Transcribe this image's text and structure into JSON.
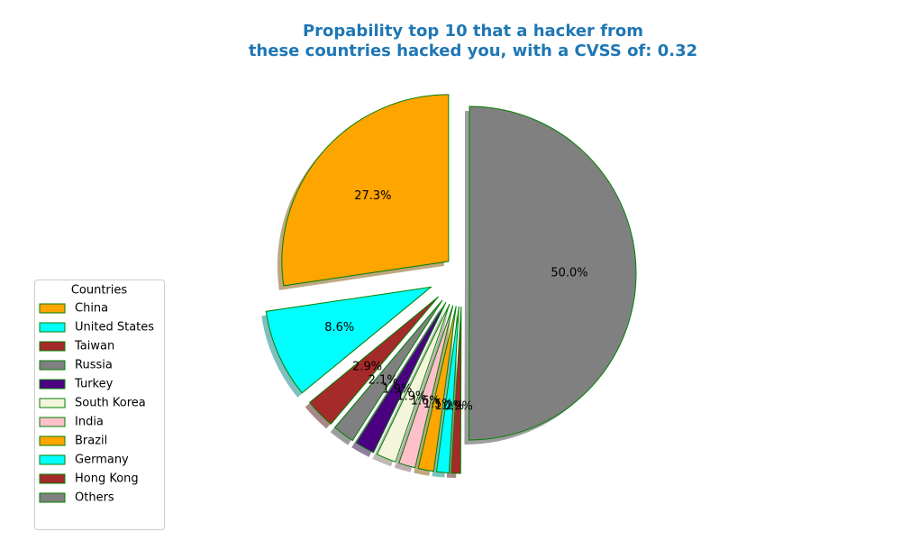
{
  "chart_data": {
    "type": "pie",
    "title": "Propability top 10 that a hacker from\nthese countries hacked you, with a CVSS of: 0.32",
    "legend_title": "Countries",
    "legend_position": "lower left",
    "categories": [
      "China",
      "United States",
      "Taiwan",
      "Russia",
      "Turkey",
      "South Korea",
      "India",
      "Brazil",
      "Germany",
      "Hong Kong",
      "Others"
    ],
    "values": [
      27.3,
      8.6,
      2.9,
      2.1,
      1.9,
      1.9,
      1.6,
      1.5,
      1.2,
      0.9,
      50.0
    ],
    "value_labels": [
      "27.3%",
      "8.6%",
      "2.9%",
      "2.1%",
      "1.9%",
      "1.9%",
      "1.6%",
      "1.5%",
      "1.2%",
      "0.9%",
      "50.0%"
    ],
    "colors": [
      "#ffa500",
      "#00ffff",
      "#a52a2a",
      "#808080",
      "#4b0082",
      "#f5f5dc",
      "#ffc0cb",
      "#ffa500",
      "#00ffff",
      "#a52a2a",
      "#808080"
    ],
    "edge_color": "#008000",
    "shadow": true
  }
}
